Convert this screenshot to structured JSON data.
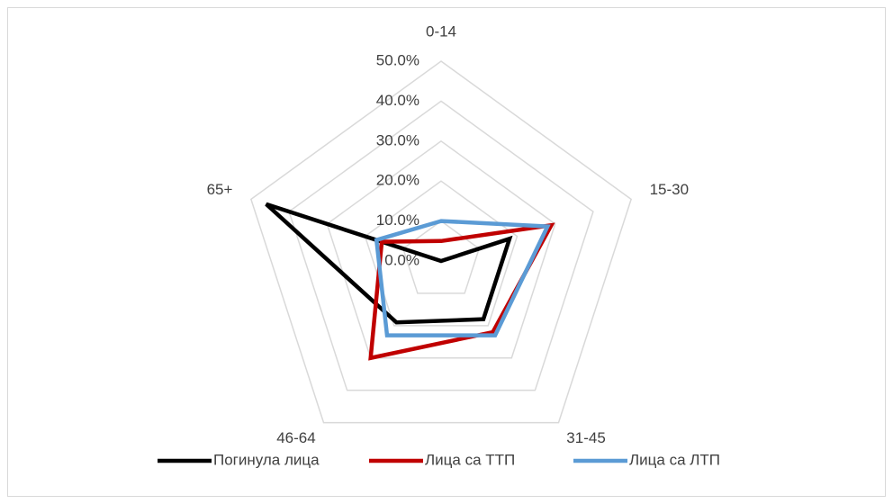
{
  "chart_data": {
    "type": "radar",
    "categories": [
      "0-14",
      "15-30",
      "31-45",
      "46-64",
      "65+"
    ],
    "rlim": [
      0,
      50
    ],
    "rticks": [
      {
        "value": 0,
        "label": "0.0%"
      },
      {
        "value": 10,
        "label": "10.0%"
      },
      {
        "value": 20,
        "label": "20.0%"
      },
      {
        "value": 30,
        "label": "30.0%"
      },
      {
        "value": 40,
        "label": "40.0%"
      },
      {
        "value": 50,
        "label": "50.0%"
      }
    ],
    "grid": true,
    "legend": "bottom",
    "series": [
      {
        "name": "Погинула лица",
        "color": "#000000",
        "values": [
          0,
          18,
          18,
          19,
          46
        ]
      },
      {
        "name": "Лица са ТТП",
        "color": "#c00000",
        "values": [
          5,
          29,
          22,
          30,
          15.6
        ]
      },
      {
        "name": "Лица са ЛТП",
        "color": "#5b9bd5",
        "values": [
          10,
          28,
          23,
          23,
          17
        ]
      }
    ]
  }
}
